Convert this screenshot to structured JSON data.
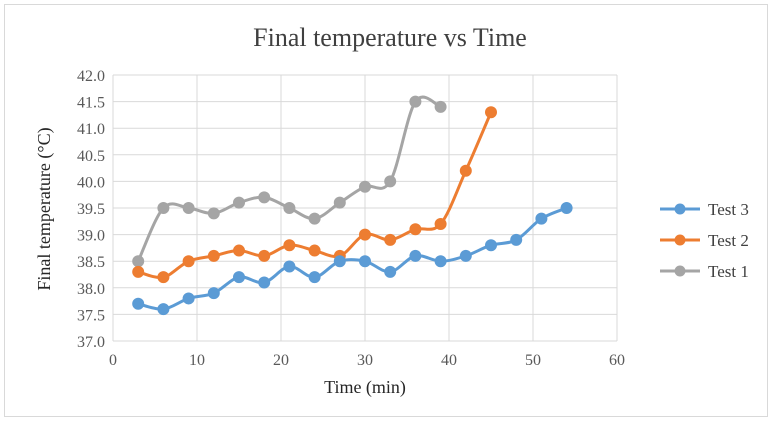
{
  "chart_data": {
    "type": "line",
    "title": "Final temperature vs Time",
    "xlabel": "Time (min)",
    "ylabel": "Final temperature (°C)",
    "xlim": [
      0,
      60
    ],
    "ylim": [
      37.0,
      42.0
    ],
    "x_ticks": [
      "0",
      "10",
      "20",
      "30",
      "40",
      "50",
      "60"
    ],
    "y_ticks": [
      "37.0",
      "37.5",
      "38.0",
      "38.5",
      "39.0",
      "39.5",
      "40.0",
      "40.5",
      "41.0",
      "41.5",
      "42.0"
    ],
    "grid": true,
    "legend_position": "right",
    "smooth": true,
    "series": [
      {
        "name": "Test 3",
        "color": "#5b9bd5",
        "x": [
          3,
          6,
          9,
          12,
          15,
          18,
          21,
          24,
          27,
          30,
          33,
          36,
          39,
          42,
          45,
          48,
          51,
          54
        ],
        "y": [
          37.7,
          37.6,
          37.8,
          37.9,
          38.2,
          38.1,
          38.4,
          38.2,
          38.5,
          38.5,
          38.3,
          38.6,
          38.5,
          38.6,
          38.8,
          38.9,
          39.3,
          39.5
        ]
      },
      {
        "name": "Test 2",
        "color": "#ed7d31",
        "x": [
          3,
          6,
          9,
          12,
          15,
          18,
          21,
          24,
          27,
          30,
          33,
          36,
          39,
          42,
          45
        ],
        "y": [
          38.3,
          38.2,
          38.5,
          38.6,
          38.7,
          38.6,
          38.8,
          38.7,
          38.6,
          39.0,
          38.9,
          39.1,
          39.2,
          40.2,
          41.3
        ]
      },
      {
        "name": "Test 1",
        "color": "#a5a5a5",
        "x": [
          3,
          6,
          9,
          12,
          15,
          18,
          21,
          24,
          27,
          30,
          33,
          36,
          39
        ],
        "y": [
          38.5,
          39.5,
          39.5,
          39.4,
          39.6,
          39.7,
          39.5,
          39.3,
          39.6,
          39.9,
          40.0,
          41.5,
          41.4
        ]
      }
    ],
    "legend_order": [
      "Test 3",
      "Test 2",
      "Test 1"
    ]
  }
}
